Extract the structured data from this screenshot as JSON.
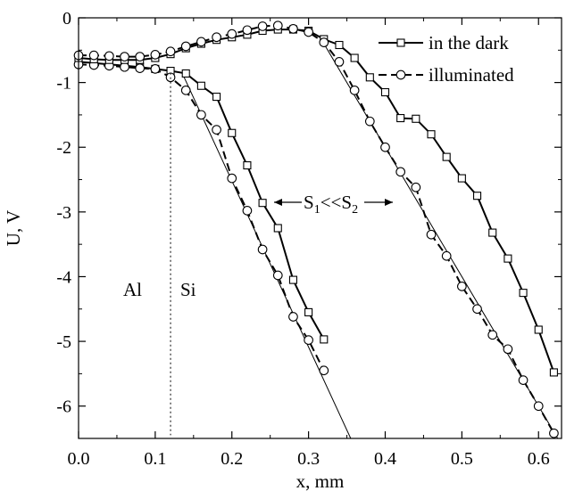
{
  "chart_data": {
    "type": "line",
    "xlabel": "x,  mm",
    "ylabel": "U,  V",
    "xlim": [
      0.0,
      0.63
    ],
    "ylim": [
      -6.5,
      0
    ],
    "x_ticks": [
      "0.0",
      "0.1",
      "0.2",
      "0.3",
      "0.4",
      "0.5",
      "0.6"
    ],
    "y_ticks": [
      "0",
      "-1",
      "-2",
      "-3",
      "-4",
      "-5",
      "-6"
    ],
    "legend_position": "top-right",
    "legend": [
      {
        "label": "in the dark",
        "marker": "square",
        "line": "solid"
      },
      {
        "label": "illuminated",
        "marker": "circle",
        "line": "dashed"
      }
    ],
    "annotations": {
      "al": "Al",
      "si": "Si",
      "s_ratio_pre": "S",
      "s_sub1": "1",
      "s_mid": "<<S",
      "s_sub2": "2",
      "boundary_x": 0.12
    },
    "series": [
      {
        "name": "in the dark",
        "marker": "square",
        "dash": false,
        "points": [
          [
            0.0,
            -0.68
          ],
          [
            0.02,
            -0.7
          ],
          [
            0.04,
            -0.72
          ],
          [
            0.06,
            -0.74
          ],
          [
            0.08,
            -0.76
          ],
          [
            0.1,
            -0.79
          ],
          [
            0.12,
            -0.82
          ],
          [
            0.14,
            -0.86
          ],
          [
            0.16,
            -1.05
          ],
          [
            0.18,
            -1.22
          ],
          [
            0.2,
            -1.78
          ],
          [
            0.22,
            -2.28
          ],
          [
            0.24,
            -2.86
          ],
          [
            0.26,
            -3.25
          ],
          [
            0.28,
            -4.05
          ],
          [
            0.3,
            -4.55
          ],
          [
            0.32,
            -4.97
          ]
        ]
      },
      {
        "name": "illuminated",
        "marker": "circle",
        "dash": true,
        "points": [
          [
            0.0,
            -0.72
          ],
          [
            0.02,
            -0.73
          ],
          [
            0.04,
            -0.74
          ],
          [
            0.06,
            -0.76
          ],
          [
            0.08,
            -0.78
          ],
          [
            0.1,
            -0.79
          ],
          [
            0.12,
            -0.92
          ],
          [
            0.14,
            -1.12
          ],
          [
            0.16,
            -1.5
          ],
          [
            0.18,
            -1.73
          ],
          [
            0.2,
            -2.48
          ],
          [
            0.22,
            -2.98
          ],
          [
            0.24,
            -3.58
          ],
          [
            0.26,
            -3.98
          ],
          [
            0.28,
            -4.62
          ],
          [
            0.3,
            -4.98
          ],
          [
            0.32,
            -5.45
          ]
        ]
      },
      {
        "name": "in the dark",
        "marker": "square",
        "dash": false,
        "points": [
          [
            0.0,
            -0.62
          ],
          [
            0.02,
            -0.64
          ],
          [
            0.04,
            -0.65
          ],
          [
            0.06,
            -0.65
          ],
          [
            0.08,
            -0.65
          ],
          [
            0.1,
            -0.62
          ],
          [
            0.12,
            -0.56
          ],
          [
            0.14,
            -0.47
          ],
          [
            0.16,
            -0.4
          ],
          [
            0.18,
            -0.34
          ],
          [
            0.2,
            -0.3
          ],
          [
            0.22,
            -0.26
          ],
          [
            0.24,
            -0.2
          ],
          [
            0.26,
            -0.18
          ],
          [
            0.28,
            -0.18
          ],
          [
            0.3,
            -0.2
          ],
          [
            0.32,
            -0.33
          ],
          [
            0.34,
            -0.42
          ],
          [
            0.36,
            -0.62
          ],
          [
            0.38,
            -0.92
          ],
          [
            0.4,
            -1.15
          ],
          [
            0.42,
            -1.55
          ],
          [
            0.44,
            -1.56
          ],
          [
            0.46,
            -1.8
          ],
          [
            0.48,
            -2.15
          ],
          [
            0.5,
            -2.48
          ],
          [
            0.52,
            -2.75
          ],
          [
            0.54,
            -3.32
          ],
          [
            0.56,
            -3.72
          ],
          [
            0.58,
            -4.25
          ],
          [
            0.6,
            -4.82
          ],
          [
            0.62,
            -5.48
          ]
        ]
      },
      {
        "name": "illuminated",
        "marker": "circle",
        "dash": true,
        "points": [
          [
            0.0,
            -0.58
          ],
          [
            0.02,
            -0.58
          ],
          [
            0.04,
            -0.59
          ],
          [
            0.06,
            -0.6
          ],
          [
            0.08,
            -0.6
          ],
          [
            0.1,
            -0.57
          ],
          [
            0.12,
            -0.52
          ],
          [
            0.14,
            -0.44
          ],
          [
            0.16,
            -0.37
          ],
          [
            0.18,
            -0.3
          ],
          [
            0.2,
            -0.25
          ],
          [
            0.22,
            -0.19
          ],
          [
            0.24,
            -0.13
          ],
          [
            0.26,
            -0.12
          ],
          [
            0.28,
            -0.17
          ],
          [
            0.3,
            -0.22
          ],
          [
            0.32,
            -0.38
          ],
          [
            0.34,
            -0.68
          ],
          [
            0.36,
            -1.12
          ],
          [
            0.38,
            -1.6
          ],
          [
            0.4,
            -2.0
          ],
          [
            0.42,
            -2.38
          ],
          [
            0.44,
            -2.62
          ],
          [
            0.46,
            -3.35
          ],
          [
            0.48,
            -3.68
          ],
          [
            0.5,
            -4.15
          ],
          [
            0.52,
            -4.5
          ],
          [
            0.54,
            -4.9
          ],
          [
            0.56,
            -5.12
          ],
          [
            0.58,
            -5.6
          ],
          [
            0.6,
            -6.0
          ],
          [
            0.62,
            -6.42
          ]
        ]
      }
    ],
    "fit_lines": [
      {
        "from": [
          0.135,
          -0.85
        ],
        "to": [
          0.355,
          -6.5
        ]
      },
      {
        "from": [
          0.315,
          -0.3
        ],
        "to": [
          0.625,
          -6.5
        ]
      }
    ]
  }
}
